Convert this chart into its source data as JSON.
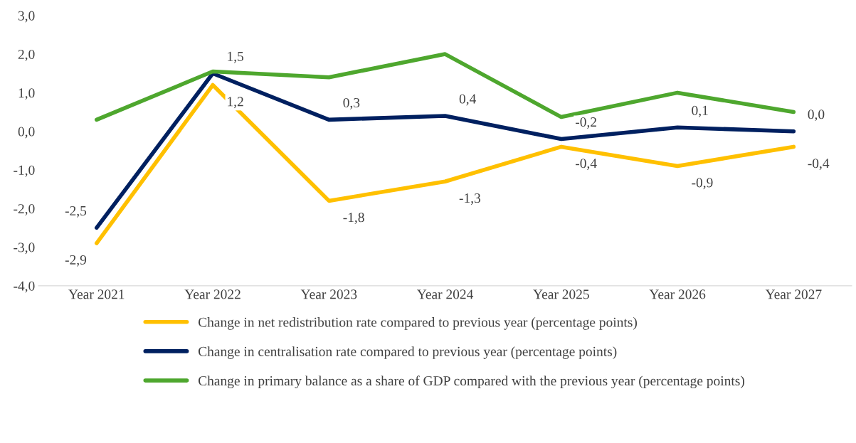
{
  "chart_data": {
    "type": "line",
    "categories": [
      "Year 2021",
      "Year 2022",
      "Year 2023",
      "Year 2024",
      "Year 2025",
      "Year 2026",
      "Year 2027"
    ],
    "series": [
      {
        "name": "Change in net redistribution rate compared to previous year (percentage points)",
        "color": "#ffc000",
        "values": [
          -2.9,
          1.2,
          -1.8,
          -1.3,
          -0.4,
          -0.9,
          -0.4
        ],
        "value_labels": [
          "-2,9",
          "1,2",
          "-1,8",
          "-1,3",
          "-0,4",
          "-0,9",
          "-0,4"
        ]
      },
      {
        "name": "Change in centralisation rate compared to previous year (percentage points)",
        "color": "#002060",
        "values": [
          -2.5,
          1.5,
          0.3,
          0.4,
          -0.2,
          0.1,
          0.0
        ],
        "value_labels": [
          "-2,5",
          "1,5",
          "0,3",
          "0,4",
          "-0,2",
          "0,1",
          "0,0"
        ]
      },
      {
        "name": "Change in primary balance as a share of GDP compared with the previous year (percentage points)",
        "color": "#4ea72e",
        "values": [
          0.3,
          1.55,
          1.4,
          2.0,
          0.37,
          1.0,
          0.5
        ]
      }
    ],
    "ylim": [
      -4,
      3
    ],
    "yticks": [
      {
        "value": -4,
        "label": "-4,0"
      },
      {
        "value": -3,
        "label": "-3,0"
      },
      {
        "value": -2,
        "label": "-2,0"
      },
      {
        "value": -1,
        "label": "-1,0"
      },
      {
        "value": 0,
        "label": "0,0"
      },
      {
        "value": 1,
        "label": "1,0"
      },
      {
        "value": 2,
        "label": "2,0"
      },
      {
        "value": 3,
        "label": "3,0"
      }
    ],
    "grid": false,
    "legend": "bottom",
    "marker": "none",
    "line_style": "solid"
  }
}
